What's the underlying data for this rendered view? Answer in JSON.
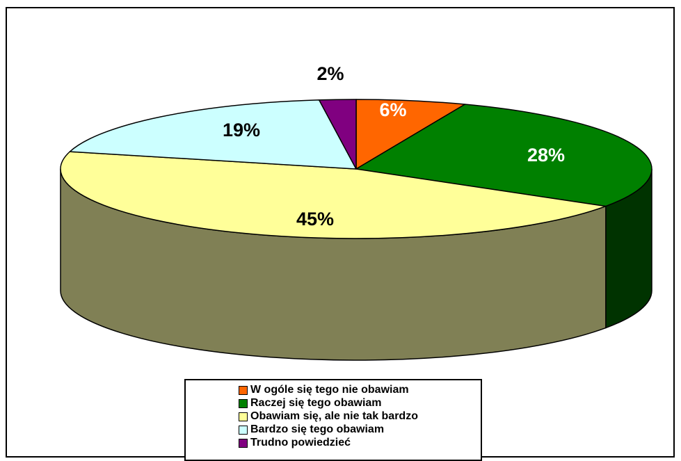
{
  "chart_data": {
    "type": "pie",
    "three_d": true,
    "legend_position": "bottom",
    "categories": [
      "W ogóle się tego nie obawiam",
      "Raczej się tego obawiam",
      "Obawiam się, ale nie tak bardzo",
      "Bardzo się tego obawiam",
      "Trudno powiedzieć"
    ],
    "values": [
      6,
      28,
      45,
      19,
      2
    ],
    "labels": [
      "6%",
      "28%",
      "45%",
      "19%",
      "2%"
    ],
    "colors": [
      "#FF6600",
      "#008000",
      "#FFFF99",
      "#CCFFFF",
      "#800080"
    ],
    "side_colors": [
      "#993D00",
      "#003300",
      "#808055",
      "#6B8080",
      "#400040"
    ],
    "label_colors": [
      "#FFFFFF",
      "#FFFFFF",
      "#000000",
      "#000000",
      "#000000"
    ]
  }
}
